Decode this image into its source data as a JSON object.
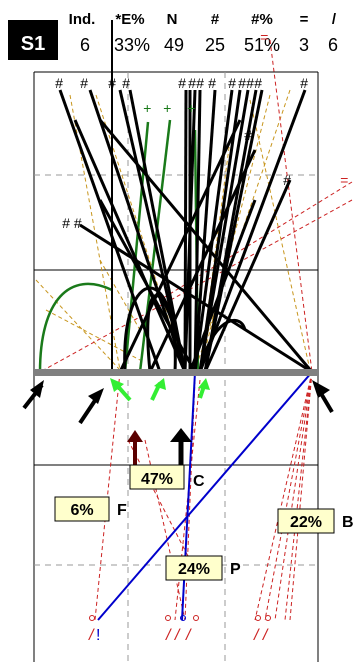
{
  "badge": "S1",
  "stats": {
    "headers": [
      "Ind.",
      "*E%",
      "N",
      "#",
      "#%",
      "=",
      "/"
    ],
    "values": [
      "6",
      "33%",
      "49",
      "25",
      "51%",
      "3",
      "6"
    ]
  },
  "court_marks": {
    "hash": "#",
    "hash_pair": "# #",
    "plus": "+",
    "equals": "=",
    "slash": "/",
    "double_slash": "/ /",
    "bang": "!"
  },
  "labels": [
    {
      "id": "C",
      "pct": "47%",
      "letter": "C"
    },
    {
      "id": "F",
      "pct": "6%",
      "letter": "F"
    },
    {
      "id": "B",
      "pct": "22%",
      "letter": "B"
    },
    {
      "id": "P",
      "pct": "24%",
      "letter": "P"
    }
  ],
  "colors": {
    "badge_bg": "#000000",
    "badge_text": "#ffffff",
    "net": "#808080",
    "grid": "#999999",
    "kill_lines": "#000000",
    "green_lines": "#1a7a1a",
    "dig_arrows": "#33ee33",
    "dashed_orange": "#c8961e",
    "dashed_red": "#cc2222",
    "blue_line": "#0000cc",
    "bang_color": "#0000cc",
    "label_bg": "#ffffcc",
    "brown": "#5a0000"
  }
}
